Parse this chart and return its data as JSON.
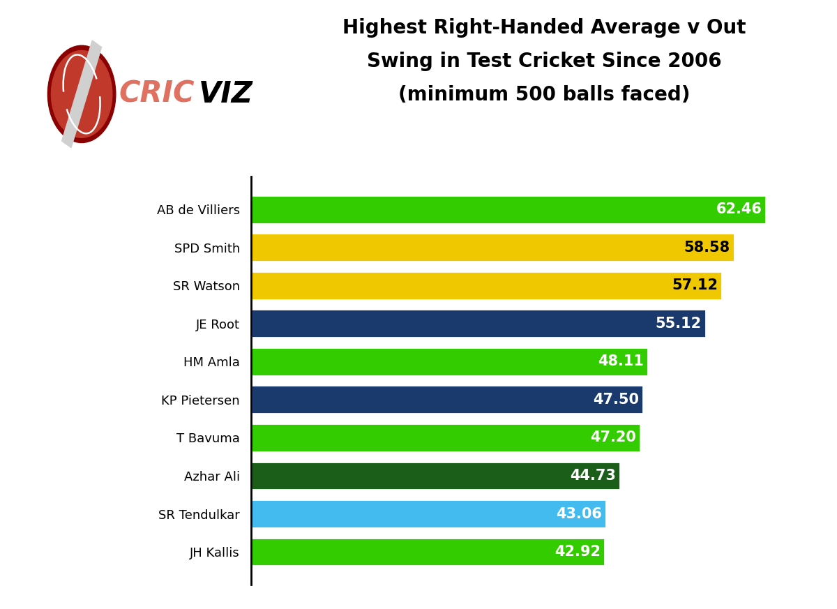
{
  "categories": [
    "AB de Villiers",
    "SPD Smith",
    "SR Watson",
    "JE Root",
    "HM Amla",
    "KP Pietersen",
    "T Bavuma",
    "Azhar Ali",
    "SR Tendulkar",
    "JH Kallis"
  ],
  "values": [
    62.46,
    58.58,
    57.12,
    55.12,
    48.11,
    47.5,
    47.2,
    44.73,
    43.06,
    42.92
  ],
  "colors": [
    "#33cc00",
    "#f0c800",
    "#f0c800",
    "#1a3a6e",
    "#33cc00",
    "#1a3a6e",
    "#33cc00",
    "#1a5e1a",
    "#44bbee",
    "#33cc00"
  ],
  "value_text_colors": [
    "white",
    "black",
    "black",
    "white",
    "white",
    "white",
    "white",
    "white",
    "white",
    "white"
  ],
  "title_line1": "Highest Right-Handed Average v Out",
  "title_line2": "Swing in Test Cricket Since 2006",
  "title_line3": "(minimum 500 balls faced)",
  "title_fontsize": 20,
  "label_fontsize": 13,
  "value_fontsize": 15,
  "background_color": "#ffffff",
  "xlim": [
    0,
    68
  ]
}
